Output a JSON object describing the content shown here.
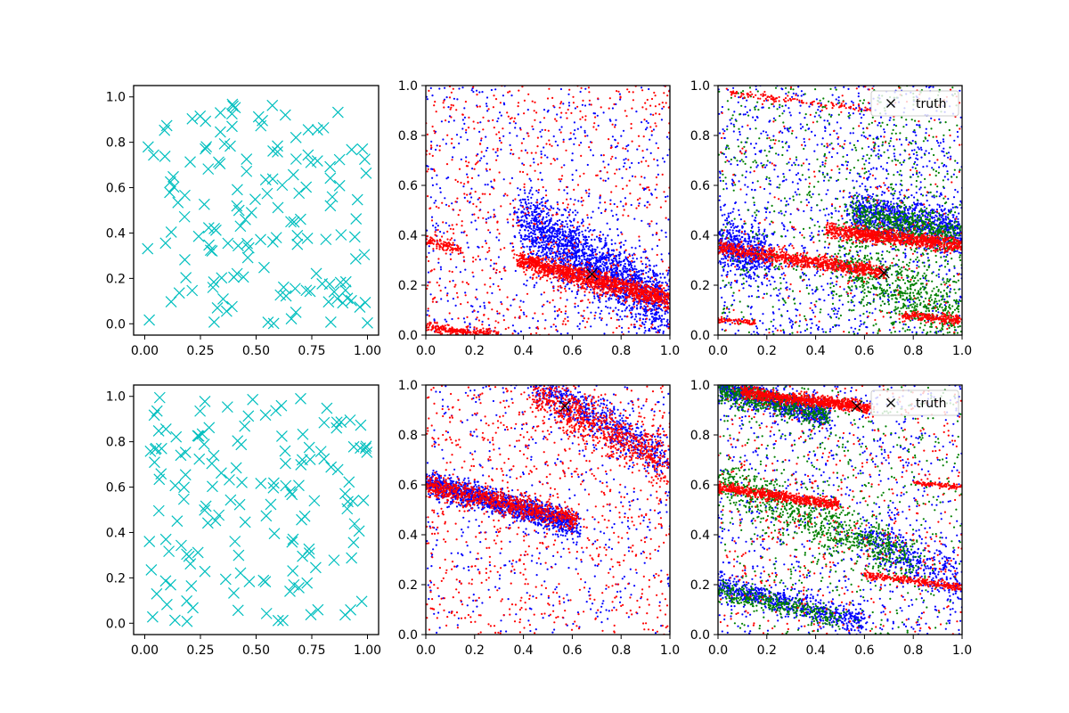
{
  "chart_data": [
    {
      "panel": "row1-col1",
      "type": "scatter",
      "marker": "x",
      "color": "#00bfbf",
      "xlim": [
        -0.05,
        1.05
      ],
      "ylim": [
        -0.05,
        1.05
      ],
      "xticks": [
        "0.00",
        "0.25",
        "0.50",
        "0.75",
        "1.00"
      ],
      "yticks": [
        "0.0",
        "0.2",
        "0.4",
        "0.6",
        "0.8",
        "1.0"
      ],
      "series": [
        {
          "name": "samples",
          "n_points": 150,
          "distribution": "uniform"
        }
      ]
    },
    {
      "panel": "row1-col2",
      "type": "scatter",
      "marker": ".",
      "xlim": [
        0,
        1
      ],
      "ylim": [
        0,
        1
      ],
      "xticks": [
        "0.0",
        "0.2",
        "0.4",
        "0.6",
        "0.8",
        "1.0"
      ],
      "yticks": [
        "0.0",
        "0.2",
        "0.4",
        "0.6",
        "0.8",
        "1.0"
      ],
      "truth": {
        "x": 0.68,
        "y": 0.245
      },
      "series": [
        {
          "name": "blue",
          "color": "#0000ff",
          "n_points": 2600,
          "bands": [
            {
              "x1": 0.4,
              "y1": 0.46,
              "x2": 1.0,
              "y2": 0.1,
              "width": 0.13,
              "share": 0.75
            }
          ]
        },
        {
          "name": "red",
          "color": "#ff0000",
          "n_points": 2400,
          "bands": [
            {
              "x1": 0.38,
              "y1": 0.3,
              "x2": 1.0,
              "y2": 0.14,
              "width": 0.04,
              "share": 0.55
            },
            {
              "x1": 0.0,
              "y1": 0.03,
              "x2": 0.3,
              "y2": 0.0,
              "width": 0.02,
              "share": 0.1
            },
            {
              "x1": 0.0,
              "y1": 0.38,
              "x2": 0.15,
              "y2": 0.34,
              "width": 0.02,
              "share": 0.05
            }
          ]
        }
      ]
    },
    {
      "panel": "row1-col3",
      "type": "scatter",
      "marker": ".",
      "xlim": [
        0,
        1
      ],
      "ylim": [
        0,
        1
      ],
      "xticks": [
        "0.0",
        "0.2",
        "0.4",
        "0.6",
        "0.8",
        "1.0"
      ],
      "yticks": [
        "0.0",
        "0.2",
        "0.4",
        "0.6",
        "0.8",
        "1.0"
      ],
      "truth": {
        "x": 0.68,
        "y": 0.25
      },
      "legend": {
        "label": "truth",
        "location": "upper right"
      },
      "series": [
        {
          "name": "blue",
          "color": "#0000ff",
          "n_points": 2600,
          "bands": [
            {
              "x1": 0.55,
              "y1": 0.5,
              "x2": 1.0,
              "y2": 0.42,
              "width": 0.08,
              "share": 0.35
            },
            {
              "x1": 0.0,
              "y1": 0.38,
              "x2": 0.2,
              "y2": 0.3,
              "width": 0.1,
              "share": 0.2
            }
          ]
        },
        {
          "name": "green",
          "color": "#008000",
          "n_points": 2000,
          "bands": [
            {
              "x1": 0.55,
              "y1": 0.48,
              "x2": 1.0,
              "y2": 0.4,
              "width": 0.08,
              "share": 0.3
            },
            {
              "x1": 0.5,
              "y1": 0.3,
              "x2": 1.0,
              "y2": 0.05,
              "width": 0.15,
              "share": 0.35
            }
          ]
        },
        {
          "name": "red",
          "color": "#ff0000",
          "n_points": 2400,
          "bands": [
            {
              "x1": 0.0,
              "y1": 0.35,
              "x2": 0.68,
              "y2": 0.25,
              "width": 0.03,
              "share": 0.35
            },
            {
              "x1": 0.45,
              "y1": 0.42,
              "x2": 1.0,
              "y2": 0.36,
              "width": 0.03,
              "share": 0.35
            },
            {
              "x1": 0.0,
              "y1": 0.06,
              "x2": 0.15,
              "y2": 0.05,
              "width": 0.01,
              "share": 0.04
            },
            {
              "x1": 0.75,
              "y1": 0.08,
              "x2": 1.0,
              "y2": 0.06,
              "width": 0.02,
              "share": 0.08
            },
            {
              "x1": 0.05,
              "y1": 0.97,
              "x2": 0.65,
              "y2": 0.9,
              "width": 0.015,
              "share": 0.06
            }
          ]
        }
      ]
    },
    {
      "panel": "row2-col1",
      "type": "scatter",
      "marker": "x",
      "color": "#00bfbf",
      "xlim": [
        -0.05,
        1.05
      ],
      "ylim": [
        -0.05,
        1.05
      ],
      "xticks": [
        "0.00",
        "0.25",
        "0.50",
        "0.75",
        "1.00"
      ],
      "yticks": [
        "0.0",
        "0.2",
        "0.4",
        "0.6",
        "0.8",
        "1.0"
      ],
      "series": [
        {
          "name": "samples",
          "n_points": 150,
          "distribution": "uniform"
        }
      ]
    },
    {
      "panel": "row2-col2",
      "type": "scatter",
      "marker": ".",
      "xlim": [
        0,
        1
      ],
      "ylim": [
        0,
        1
      ],
      "xticks": [
        "0.0",
        "0.2",
        "0.4",
        "0.6",
        "0.8",
        "1.0"
      ],
      "yticks": [
        "0.0",
        "0.2",
        "0.4",
        "0.6",
        "0.8",
        "1.0"
      ],
      "truth": {
        "x": 0.57,
        "y": 0.915
      },
      "series": [
        {
          "name": "blue",
          "color": "#0000ff",
          "n_points": 2500,
          "bands": [
            {
              "x1": 0.0,
              "y1": 0.61,
              "x2": 0.62,
              "y2": 0.44,
              "width": 0.05,
              "share": 0.55
            },
            {
              "x1": 0.45,
              "y1": 1.0,
              "x2": 1.0,
              "y2": 0.7,
              "width": 0.08,
              "share": 0.25
            }
          ]
        },
        {
          "name": "red",
          "color": "#ff0000",
          "n_points": 2400,
          "bands": [
            {
              "x1": 0.0,
              "y1": 0.6,
              "x2": 0.62,
              "y2": 0.46,
              "width": 0.04,
              "share": 0.35
            },
            {
              "x1": 0.45,
              "y1": 0.98,
              "x2": 1.0,
              "y2": 0.68,
              "width": 0.1,
              "share": 0.3
            }
          ]
        }
      ]
    },
    {
      "panel": "row2-col3",
      "type": "scatter",
      "marker": ".",
      "xlim": [
        0,
        1
      ],
      "ylim": [
        0,
        1
      ],
      "xticks": [
        "0.0",
        "0.2",
        "0.4",
        "0.6",
        "0.8",
        "1.0"
      ],
      "yticks": [
        "0.0",
        "0.2",
        "0.4",
        "0.6",
        "0.8",
        "1.0"
      ],
      "truth": {
        "x": 0.57,
        "y": 0.915
      },
      "legend": {
        "label": "truth",
        "location": "upper right"
      },
      "series": [
        {
          "name": "blue",
          "color": "#0000ff",
          "n_points": 2600,
          "bands": [
            {
              "x1": 0.0,
              "y1": 0.99,
              "x2": 0.45,
              "y2": 0.88,
              "width": 0.05,
              "share": 0.3
            },
            {
              "x1": 0.0,
              "y1": 0.2,
              "x2": 0.6,
              "y2": 0.05,
              "width": 0.05,
              "share": 0.25
            },
            {
              "x1": 0.6,
              "y1": 0.4,
              "x2": 1.0,
              "y2": 0.2,
              "width": 0.1,
              "share": 0.15
            }
          ]
        },
        {
          "name": "green",
          "color": "#008000",
          "n_points": 2200,
          "bands": [
            {
              "x1": 0.0,
              "y1": 0.98,
              "x2": 0.45,
              "y2": 0.88,
              "width": 0.05,
              "share": 0.25
            },
            {
              "x1": 0.0,
              "y1": 0.62,
              "x2": 0.8,
              "y2": 0.3,
              "width": 0.1,
              "share": 0.35
            },
            {
              "x1": 0.0,
              "y1": 0.18,
              "x2": 0.5,
              "y2": 0.06,
              "width": 0.04,
              "share": 0.15
            }
          ]
        },
        {
          "name": "red",
          "color": "#ff0000",
          "n_points": 2400,
          "bands": [
            {
              "x1": 0.1,
              "y1": 0.97,
              "x2": 0.62,
              "y2": 0.91,
              "width": 0.025,
              "share": 0.35
            },
            {
              "x1": 0.0,
              "y1": 0.59,
              "x2": 0.5,
              "y2": 0.52,
              "width": 0.02,
              "share": 0.25
            },
            {
              "x1": 0.6,
              "y1": 0.24,
              "x2": 1.0,
              "y2": 0.19,
              "width": 0.015,
              "share": 0.12
            },
            {
              "x1": 0.8,
              "y1": 0.61,
              "x2": 1.0,
              "y2": 0.59,
              "width": 0.01,
              "share": 0.04
            }
          ]
        }
      ]
    }
  ]
}
